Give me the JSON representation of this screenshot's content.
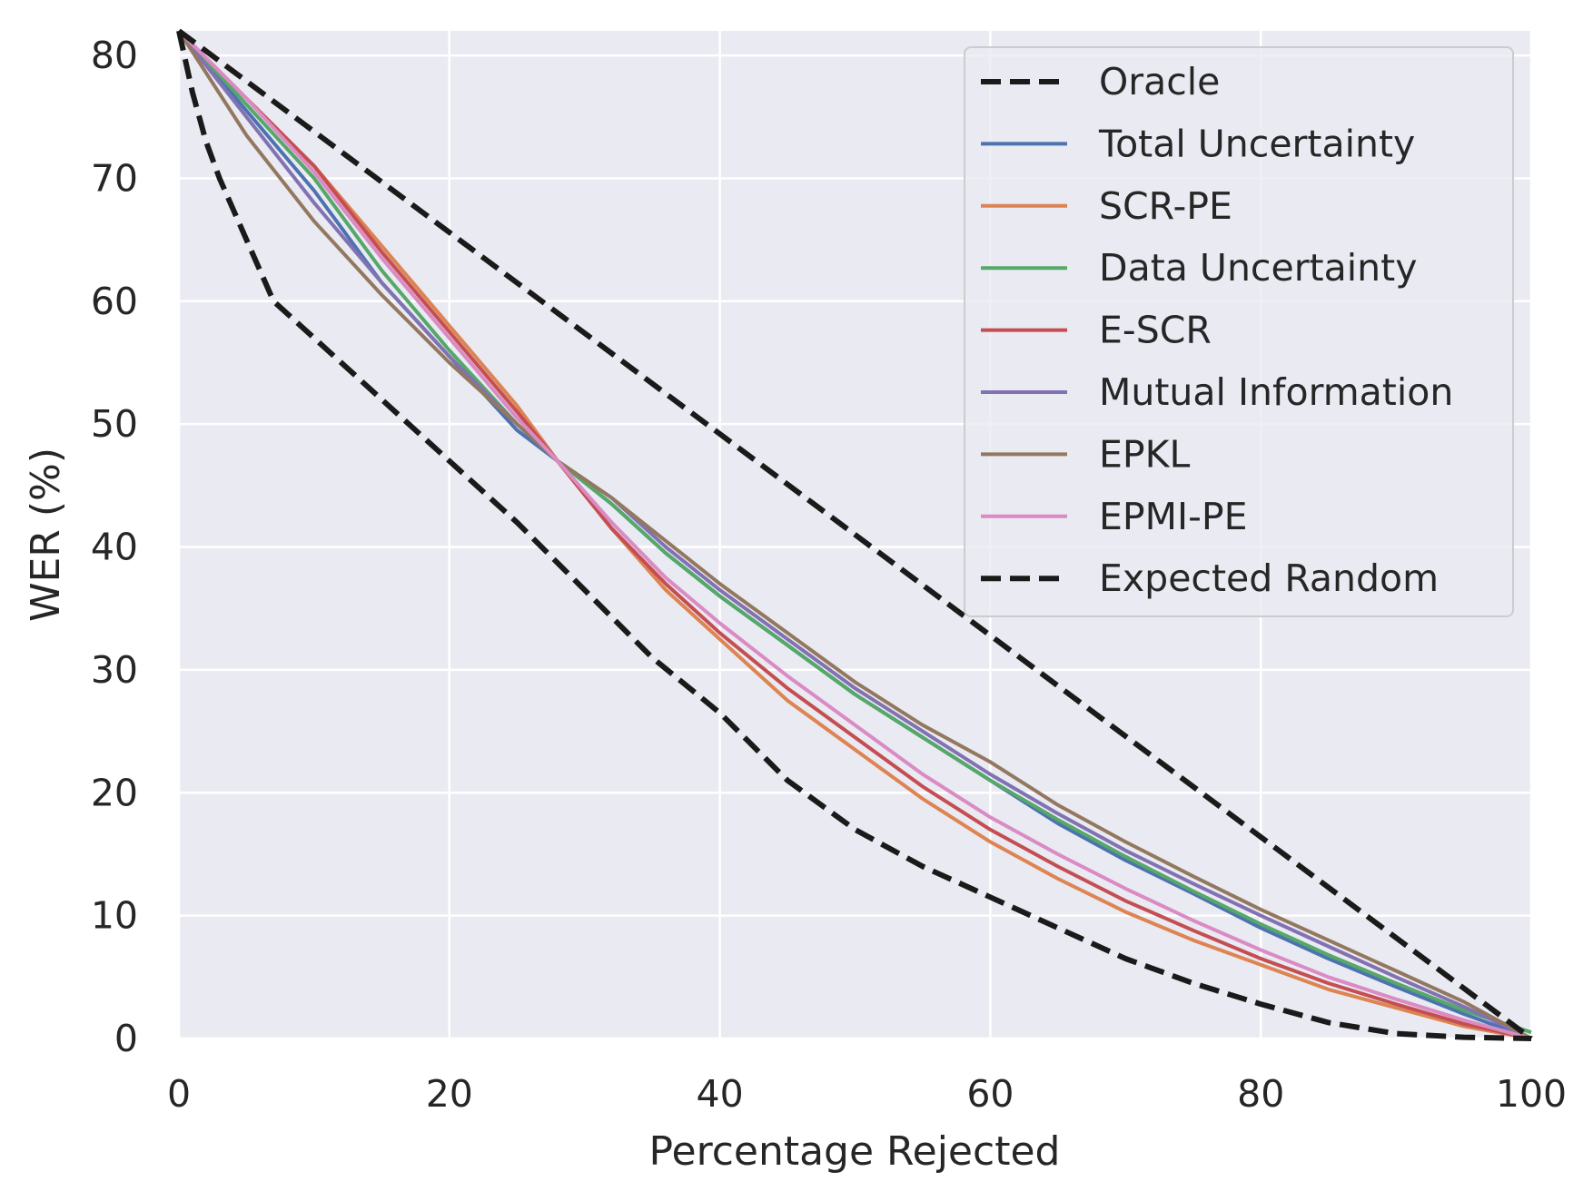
{
  "chart_data": {
    "type": "line",
    "title": "",
    "xlabel": "Percentage Rejected",
    "ylabel": "WER (%)",
    "xlim": [
      0,
      100
    ],
    "ylim": [
      0,
      82
    ],
    "xticks": [
      0,
      20,
      40,
      60,
      80,
      100
    ],
    "yticks": [
      0,
      10,
      20,
      30,
      40,
      50,
      60,
      70,
      80
    ],
    "grid": true,
    "legend_position": "top-right",
    "background": "#EAEAF2",
    "series": [
      {
        "name": "Oracle",
        "color": "#1a1a1a",
        "style": "dashed",
        "x": [
          0,
          1,
          2,
          3,
          5,
          7,
          10,
          13,
          16,
          20,
          25,
          30,
          35,
          40,
          45,
          50,
          55,
          60,
          65,
          70,
          75,
          80,
          85,
          90,
          95,
          100
        ],
        "y": [
          82,
          77,
          73,
          70,
          65,
          60,
          57,
          54,
          51,
          47,
          42,
          36.5,
          31,
          26.5,
          21,
          17,
          14,
          11.5,
          9,
          6.5,
          4.5,
          2.8,
          1.3,
          0.4,
          0.1,
          0
        ]
      },
      {
        "name": "Total Uncertainty",
        "color": "#4C72B0",
        "style": "solid",
        "x": [
          0,
          5,
          10,
          15,
          20,
          25,
          28,
          32,
          36,
          40,
          45,
          50,
          55,
          60,
          65,
          70,
          75,
          80,
          85,
          90,
          95,
          100
        ],
        "y": [
          82,
          75.5,
          69,
          61.5,
          55.5,
          49.5,
          47,
          43.5,
          39.5,
          36,
          32,
          28,
          24.5,
          21,
          17.5,
          14.5,
          11.8,
          9,
          6.5,
          4.2,
          2,
          0
        ]
      },
      {
        "name": "SCR-PE",
        "color": "#DD8452",
        "style": "solid",
        "x": [
          0,
          5,
          10,
          15,
          20,
          25,
          28,
          32,
          36,
          40,
          45,
          50,
          55,
          60,
          65,
          70,
          75,
          80,
          85,
          90,
          95,
          100
        ],
        "y": [
          82,
          76.5,
          71,
          64.5,
          58,
          51.5,
          47,
          41.5,
          36.5,
          32.5,
          27.5,
          23.5,
          19.5,
          16,
          13,
          10.3,
          8,
          6,
          4,
          2.5,
          1,
          0
        ]
      },
      {
        "name": "Data Uncertainty",
        "color": "#55A868",
        "style": "solid",
        "x": [
          0,
          5,
          10,
          15,
          20,
          25,
          28,
          32,
          36,
          40,
          45,
          50,
          55,
          60,
          65,
          70,
          75,
          80,
          85,
          90,
          95,
          100
        ],
        "y": [
          82,
          76,
          70,
          62.5,
          56,
          50,
          47,
          43.5,
          39.5,
          36,
          32,
          28,
          24.5,
          21,
          17.8,
          14.8,
          12,
          9.3,
          6.8,
          4.5,
          2.3,
          0.5
        ]
      },
      {
        "name": "E-SCR",
        "color": "#C44E52",
        "style": "solid",
        "x": [
          0,
          5,
          10,
          15,
          20,
          25,
          28,
          32,
          36,
          40,
          45,
          50,
          55,
          60,
          65,
          70,
          75,
          80,
          85,
          90,
          95,
          100
        ],
        "y": [
          82,
          76.5,
          71,
          64,
          57.5,
          51,
          47,
          41.5,
          37,
          33,
          28.5,
          24.5,
          20.5,
          17,
          14,
          11.2,
          8.8,
          6.5,
          4.5,
          2.8,
          1.2,
          0
        ]
      },
      {
        "name": "Mutual Information",
        "color": "#8172B3",
        "style": "solid",
        "x": [
          0,
          5,
          10,
          15,
          20,
          25,
          28,
          32,
          36,
          40,
          45,
          50,
          55,
          60,
          65,
          70,
          75,
          80,
          85,
          90,
          95,
          100
        ],
        "y": [
          82,
          75,
          68,
          61.5,
          55.5,
          50,
          47,
          44,
          40,
          36.5,
          32.5,
          28.5,
          25,
          21.5,
          18.3,
          15.3,
          12.6,
          10,
          7.5,
          5,
          2.6,
          0
        ]
      },
      {
        "name": "EPKL",
        "color": "#937860",
        "style": "solid",
        "x": [
          0,
          5,
          10,
          15,
          20,
          25,
          28,
          32,
          36,
          40,
          45,
          50,
          55,
          60,
          65,
          70,
          75,
          80,
          85,
          90,
          95,
          100
        ],
        "y": [
          82,
          73.5,
          66.5,
          60.5,
          55,
          50,
          47,
          44,
          40.5,
          37,
          33,
          29,
          25.5,
          22.5,
          19,
          16,
          13.2,
          10.5,
          8,
          5.5,
          3,
          0
        ]
      },
      {
        "name": "EPMI-PE",
        "color": "#DA8BC3",
        "style": "solid",
        "x": [
          0,
          5,
          10,
          15,
          20,
          25,
          28,
          32,
          36,
          40,
          45,
          50,
          55,
          60,
          65,
          70,
          75,
          80,
          85,
          90,
          95,
          100
        ],
        "y": [
          82,
          76.5,
          70.5,
          63.5,
          57,
          50.5,
          47,
          42,
          37.5,
          33.8,
          29.5,
          25.5,
          21.5,
          18,
          15,
          12.2,
          9.6,
          7.2,
          5,
          3.2,
          1.5,
          0
        ]
      },
      {
        "name": "Expected Random",
        "color": "#1a1a1a",
        "style": "dashed",
        "x": [
          0,
          100
        ],
        "y": [
          82,
          0
        ]
      }
    ]
  }
}
